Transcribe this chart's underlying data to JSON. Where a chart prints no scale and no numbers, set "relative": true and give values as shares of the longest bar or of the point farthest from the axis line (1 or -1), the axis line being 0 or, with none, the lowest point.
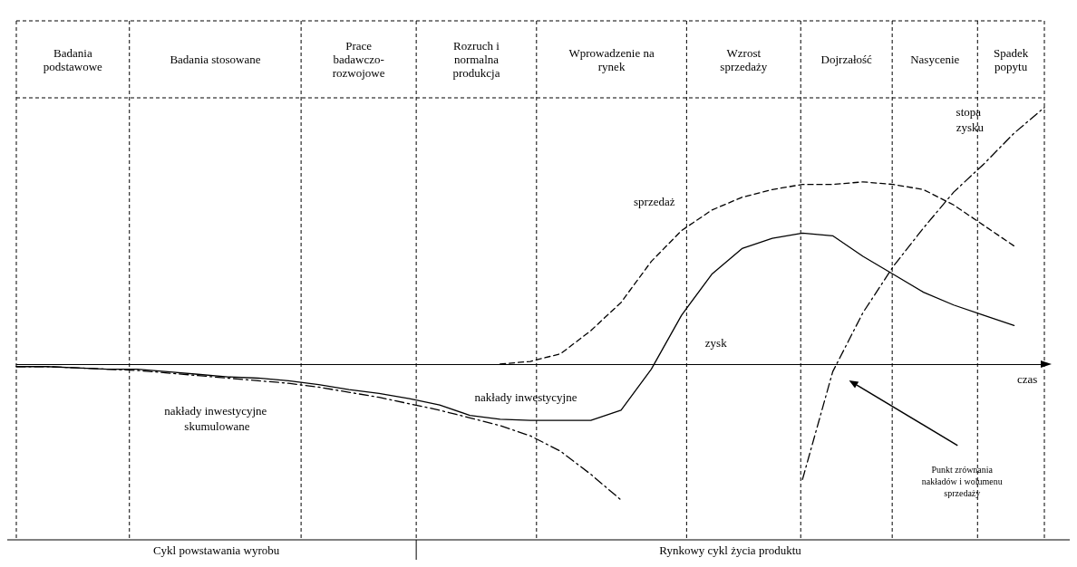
{
  "chart_data": {
    "type": "line",
    "relative": true,
    "xlabel": "czas",
    "legend": false,
    "marker": "none",
    "categories": [
      null,
      null,
      null,
      null,
      null,
      null,
      null,
      null,
      null,
      null,
      null,
      null,
      null,
      null,
      null,
      null,
      null,
      null,
      null,
      null,
      null,
      null,
      null,
      null,
      null,
      null,
      null,
      null,
      null,
      null,
      null,
      null,
      null,
      null,
      null
    ],
    "series": [
      {
        "name": "sprzedaż",
        "color": "#000000",
        "line_style": "dashed",
        "values": [
          null,
          null,
          null,
          null,
          null,
          null,
          null,
          null,
          null,
          null,
          null,
          null,
          null,
          null,
          null,
          null,
          0,
          0.01,
          0.04,
          0.13,
          0.24,
          0.4,
          0.52,
          0.6,
          0.65,
          0.68,
          0.7,
          0.7,
          0.71,
          0.7,
          0.68,
          0.62,
          0.54,
          0.46,
          null
        ]
      },
      {
        "name": "zysk",
        "color": "#000000",
        "line_style": "solid",
        "values": [
          -0.01,
          -0.01,
          -0.015,
          -0.02,
          -0.02,
          -0.03,
          -0.04,
          -0.05,
          -0.055,
          -0.065,
          -0.08,
          -0.1,
          -0.115,
          -0.135,
          -0.16,
          -0.2,
          -0.215,
          -0.22,
          -0.22,
          -0.22,
          -0.18,
          -0.02,
          0.19,
          0.35,
          0.45,
          0.49,
          0.51,
          0.5,
          0.42,
          0.35,
          0.28,
          0.23,
          0.19,
          0.15,
          null
        ]
      },
      {
        "name": "nakłady inwestycyjne skumulowane",
        "color": "#000000",
        "line_style": "dashdot",
        "values": [
          -0.01,
          -0.01,
          -0.015,
          -0.02,
          -0.025,
          -0.035,
          -0.045,
          -0.055,
          -0.065,
          -0.075,
          -0.09,
          -0.11,
          -0.13,
          -0.155,
          -0.18,
          -0.21,
          -0.24,
          -0.28,
          -0.34,
          -0.43,
          -0.53,
          null,
          null,
          null,
          null,
          null,
          null,
          null,
          null,
          null,
          null,
          null,
          null,
          null,
          null
        ]
      },
      {
        "name": "stopa zysku",
        "color": "#000000",
        "line_style": "dashdot",
        "values": [
          null,
          null,
          null,
          null,
          null,
          null,
          null,
          null,
          null,
          null,
          null,
          null,
          null,
          null,
          null,
          null,
          null,
          null,
          null,
          null,
          null,
          null,
          null,
          null,
          null,
          null,
          -0.45,
          -0.03,
          0.2,
          0.38,
          0.53,
          0.67,
          0.78,
          0.9,
          1.0
        ]
      }
    ],
    "annotations": [
      "Badania\npodstawowe",
      "Badania stosowane",
      "Prace\nbadawczo-\nrozwojowe",
      "Rozruch i\nnormalna\nprodukcja",
      "Wprowadzenie na\nrynek",
      "Wzrost\nsprzedaży",
      "Dojrzałość",
      "Nasycenie",
      "Spadek\npopytu",
      "Cykl powstawania wyrobu",
      "Rynkowy cykl życia produktu",
      "Punkt zrównania\nnakładów i wolumenu\nsprzedaży",
      "nakłady inwestycyjne"
    ]
  }
}
